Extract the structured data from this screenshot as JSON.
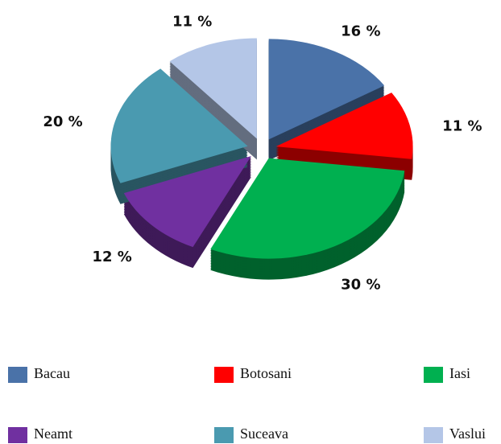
{
  "chart_data": {
    "type": "pie",
    "categories": [
      "Bacau",
      "Botosani",
      "Iasi",
      "Neamt",
      "Suceava",
      "Vaslui"
    ],
    "values": [
      16,
      11,
      30,
      12,
      20,
      11
    ],
    "value_labels": [
      "16 %",
      "11 %",
      "30 %",
      "12 %",
      "20 %",
      "11 %"
    ],
    "colors": [
      "#4a72a8",
      "#ff0000",
      "#00b050",
      "#7030a0",
      "#4a9ab0",
      "#b4c6e7"
    ],
    "legend": "bottom"
  }
}
